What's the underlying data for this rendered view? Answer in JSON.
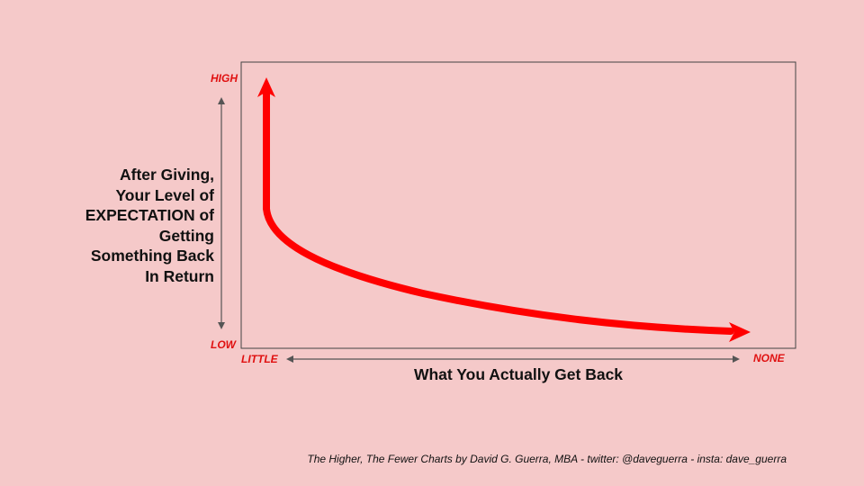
{
  "diagram": {
    "y_axis": {
      "label": "After Giving,\nYour Level of\nEXPECTATION of\nGetting\nSomething Back\nIn Return",
      "high_label": "HIGH",
      "low_label": "LOW"
    },
    "x_axis": {
      "label": "What You Actually Get Back",
      "start_label": "LITTLE",
      "end_label": "NONE"
    },
    "curve_color": "#ff0000",
    "tick_color": "#e01010"
  },
  "footer": {
    "credit": "The Higher, The Fewer Charts by David G. Guerra, MBA  - twitter:  @daveguerra - insta: dave_guerra"
  }
}
